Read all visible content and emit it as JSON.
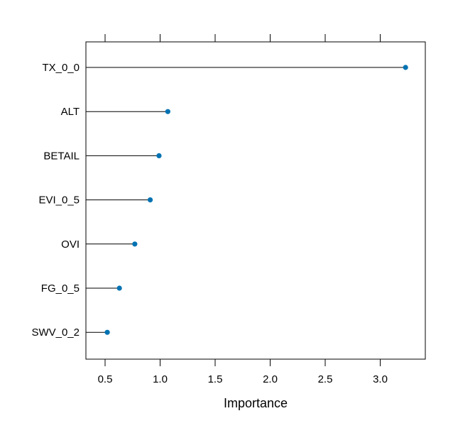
{
  "chart_data": {
    "type": "dotplot",
    "xlabel": "Importance",
    "ylabel": "",
    "title": "",
    "xlim": [
      0.34,
      3.42
    ],
    "x_ticks": [
      0.5,
      1.0,
      1.5,
      2.0,
      2.5,
      3.0
    ],
    "x_tick_labels": [
      "0.5",
      "1.0",
      "1.5",
      "2.0",
      "2.5",
      "3.0"
    ],
    "categories": [
      "TX_0_0",
      "ALT",
      "BETAIL",
      "EVI_0_5",
      "OVI",
      "FG_0_5",
      "SWV_0_2"
    ],
    "values": [
      3.23,
      1.07,
      0.99,
      0.91,
      0.77,
      0.63,
      0.52
    ],
    "point_color": "#0072b2",
    "line_color": "#000000",
    "grid": false,
    "legend": "none"
  }
}
